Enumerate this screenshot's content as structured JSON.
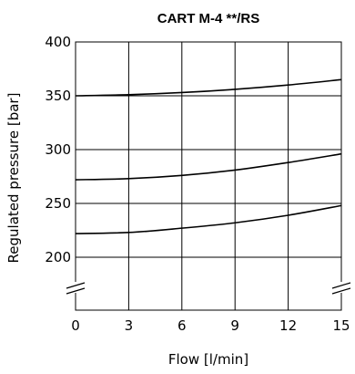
{
  "chart_data": {
    "type": "line",
    "title": "CART  M-4 **/RS",
    "xlabel": "Flow [l/min]",
    "ylabel": "Regulated pressure [bar]",
    "xlim": [
      0,
      15
    ],
    "ylim": [
      200,
      400
    ],
    "x_ticks": [
      "0",
      "3",
      "6",
      "9",
      "12",
      "15"
    ],
    "y_ticks": [
      "400",
      "350",
      "300",
      "250",
      "200"
    ],
    "y_axis_break": true,
    "grid": true,
    "legend": "none",
    "series": [
      {
        "x": [
          0,
          3,
          6,
          9,
          12,
          15
        ],
        "values": [
          350,
          351,
          353,
          356,
          360,
          365
        ]
      },
      {
        "x": [
          0,
          3,
          6,
          9,
          12,
          15
        ],
        "values": [
          272,
          273,
          276,
          281,
          288,
          296
        ]
      },
      {
        "x": [
          0,
          3,
          6,
          9,
          12,
          15
        ],
        "values": [
          222,
          223,
          227,
          232,
          239,
          248
        ]
      }
    ]
  }
}
